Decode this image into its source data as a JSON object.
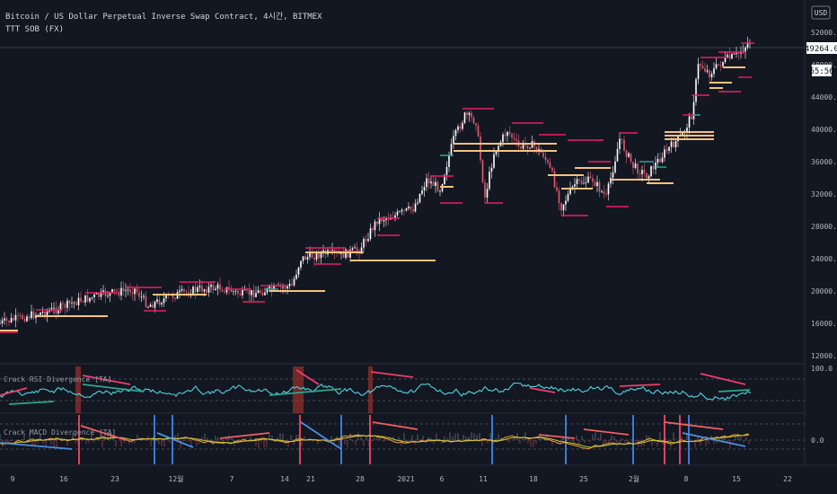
{
  "header": {
    "symbol": "Bitcoin / US Dollar Perpetual Inverse Swap Contract, 4시간, BITMEX",
    "indicator": "TTT SOB (FX)",
    "currency": "USD"
  },
  "price_axis": {
    "ticks": [
      "52000.0",
      "48000.0",
      "44000.0",
      "40000.0",
      "36000.0",
      "32000.0",
      "28000.0",
      "24000.0",
      "20000.0",
      "16000.0",
      "12000.0"
    ],
    "last_price": "49264.0",
    "countdown": "55:56"
  },
  "rsi_pane": {
    "label": "Crack RSI Divergence [TA]",
    "level": "100.0"
  },
  "macd_pane": {
    "label": "Crack MACD Divergence [TA]",
    "level": "0.0"
  },
  "time_axis": {
    "ticks": [
      "9",
      "16",
      "23",
      "12월",
      "7",
      "14",
      "21",
      "28",
      "2021",
      "6",
      "11",
      "18",
      "25",
      "2월",
      "8",
      "15",
      "22"
    ]
  },
  "colors": {
    "background": "#131722",
    "up": "#ffffff",
    "down": "#e05b6f",
    "highline": "#e91e63",
    "lowline": "#26a69a",
    "zone": "#f5c37c",
    "rsi": "#4fd3e0",
    "macd": "#f0a030",
    "signal": "#c9c93a",
    "bear_div": "#ef3e6a",
    "bull_div": "#2fa58e"
  }
}
